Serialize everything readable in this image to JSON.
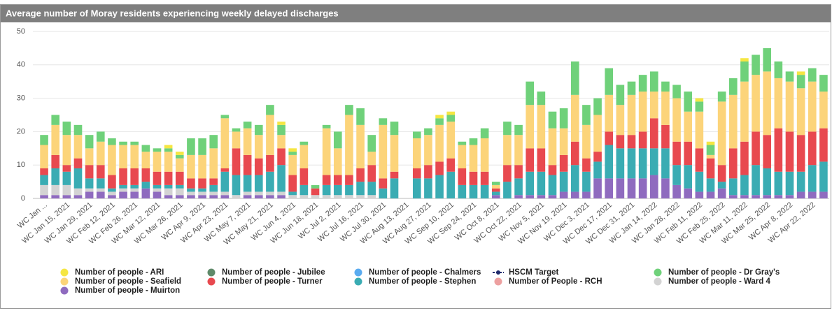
{
  "chart_data": {
    "type": "stacked_bar",
    "title": "Average number of Moray residents experiencing weekly delayed discharges",
    "categories": [
      "WC Jan ...",
      null,
      "WC Jan 15, 2021",
      null,
      "WC Jan 29, 2021",
      null,
      "WC Feb 12, 2021",
      null,
      "WC Feb 26, 2021",
      null,
      "WC Mar 12, 2021",
      null,
      "WC Mar 26, 2021",
      null,
      "WC Apr 9, 2021",
      null,
      "WC Apr 23, 2021",
      null,
      "WC May 7, 2021",
      null,
      "WC May 21, 2021",
      null,
      "WC Jun 4, 2021",
      null,
      "WC Jun 18, 2021",
      null,
      "WC Jul 2, 2021",
      null,
      "WC Jul 16, 2021",
      null,
      "WC Jul 30, 2021",
      null,
      "WC Aug 13, 2021",
      null,
      "WC Aug 27, 2021",
      null,
      "WC Sep 10, 2021",
      null,
      "WC Sep 24, 2021",
      null,
      "WC Oct 8, 2021",
      null,
      "WC Oct 22, 2021",
      null,
      "WC Nov 5, 2021",
      null,
      "WC Nov 19, 2021",
      null,
      "WC Dec 3, 2021",
      null,
      "WC Dec 17, 2021",
      null,
      "WC Dec 31, 2021",
      null,
      "WC Jan 14, 2022",
      null,
      "WC Jan 28, 2022",
      null,
      "WC Feb 11, 2022",
      null,
      "WC Feb 25, 2022",
      null,
      "WC Mar 11, 2022",
      null,
      "WC Mar 25, 2022",
      null,
      "WC Apr 8, 2022",
      null,
      "WC Apr 22, 2022",
      null
    ],
    "series": [
      {
        "name": "Number of people - ARI",
        "color": "#f5e642",
        "values": [
          0,
          0,
          0,
          0,
          0,
          0,
          0,
          0,
          0,
          0,
          0,
          1,
          1,
          0,
          0,
          0,
          0,
          0,
          0,
          0,
          0,
          1,
          1,
          0,
          0,
          0,
          0,
          0,
          0,
          0,
          0,
          0,
          0,
          0,
          0,
          1,
          1,
          0,
          0,
          0,
          0,
          0,
          0,
          0,
          0,
          0,
          0,
          0,
          0,
          0,
          0,
          0,
          0,
          0,
          0,
          0,
          0,
          0,
          1,
          1,
          0,
          0,
          1,
          0,
          0,
          0,
          0,
          1,
          0,
          0
        ]
      },
      {
        "name": "Number of people - Jubilee",
        "color": "#5f8a6a",
        "values": [
          0,
          0,
          0,
          0,
          0,
          0,
          0,
          0,
          0,
          0,
          0,
          0,
          0,
          0,
          0,
          0,
          0,
          0,
          0,
          0,
          0,
          0,
          0,
          0,
          0,
          0,
          0,
          0,
          0,
          0,
          0,
          0,
          0,
          0,
          0,
          0,
          0,
          0,
          0,
          0,
          0,
          0,
          0,
          0,
          0,
          0,
          0,
          0,
          0,
          0,
          0,
          0,
          0,
          0,
          0,
          0,
          0,
          0,
          0,
          0,
          0,
          0,
          0,
          0,
          0,
          0,
          0,
          0,
          0,
          0
        ]
      },
      {
        "name": "Number of people - Chalmers",
        "color": "#5aabf0",
        "values": [
          0,
          0,
          0,
          0,
          0,
          0,
          0,
          0,
          0,
          0,
          0,
          0,
          0,
          0,
          0,
          0,
          0,
          0,
          0,
          0,
          0,
          0,
          0,
          0,
          0,
          0,
          0,
          0,
          0,
          0,
          0,
          0,
          0,
          0,
          0,
          0,
          0,
          0,
          0,
          0,
          0,
          0,
          0,
          0,
          0,
          0,
          0,
          0,
          0,
          0,
          0,
          0,
          0,
          0,
          0,
          0,
          0,
          0,
          0,
          0,
          0,
          0,
          0,
          0,
          0,
          0,
          0,
          0,
          0,
          0
        ]
      },
      {
        "name": "HSCM Target",
        "color": "#1f2a6b",
        "values": [
          null,
          null,
          null,
          null,
          null,
          null,
          null,
          null,
          null,
          null,
          null,
          null,
          null,
          null,
          null,
          null,
          null,
          null,
          null,
          null,
          null,
          null,
          null,
          null,
          null,
          null,
          null,
          null,
          null,
          null,
          null,
          null,
          null,
          null,
          null,
          null,
          null,
          null,
          null,
          null,
          null,
          null,
          null,
          null,
          null,
          null,
          null,
          null,
          null,
          null,
          null,
          null,
          null,
          null,
          null,
          null,
          null,
          null,
          null,
          null,
          null,
          null,
          null,
          null,
          null,
          null,
          null,
          null,
          null,
          null
        ]
      },
      {
        "name": "Number of people - Dr Gray's",
        "color": "#6fd17a",
        "values": [
          3,
          3,
          4,
          3,
          4,
          3,
          2,
          1,
          1,
          2,
          1,
          1,
          1,
          5,
          5,
          4,
          1,
          1,
          2,
          3,
          3,
          3,
          1,
          1,
          1,
          1,
          5,
          3,
          5,
          5,
          2,
          4,
          0,
          2,
          2,
          2,
          2,
          1,
          2,
          3,
          1,
          4,
          3,
          7,
          4,
          5,
          6,
          10,
          6,
          5,
          8,
          6,
          4,
          5,
          6,
          3,
          4,
          6,
          3,
          3,
          3,
          5,
          6,
          6,
          7,
          5,
          3,
          4,
          4,
          5
        ]
      },
      {
        "name": "Number of people - Seafield",
        "color": "#fcd47a",
        "values": [
          7,
          9,
          9,
          7,
          5,
          7,
          9,
          7,
          7,
          5,
          6,
          6,
          4,
          7,
          7,
          9,
          15,
          5,
          8,
          7,
          12,
          4,
          6,
          7,
          0,
          14,
          8,
          18,
          13,
          4,
          16,
          11,
          0,
          9,
          9,
          11,
          11,
          7,
          8,
          10,
          1,
          9,
          9,
          13,
          13,
          11,
          8,
          14,
          10,
          11,
          11,
          9,
          12,
          12,
          8,
          10,
          13,
          9,
          11,
          1,
          19,
          16,
          18,
          17,
          19,
          15,
          15,
          14,
          15,
          11
        ]
      },
      {
        "name": "Number of people - Turner",
        "color": "#e8494f",
        "values": [
          2,
          4,
          2,
          3,
          4,
          4,
          4,
          5,
          5,
          4,
          4,
          4,
          4,
          3,
          3,
          2,
          1,
          8,
          6,
          5,
          5,
          5,
          5,
          5,
          2,
          3,
          3,
          3,
          4,
          5,
          3,
          2,
          0,
          3,
          4,
          4,
          4,
          5,
          4,
          4,
          1,
          5,
          4,
          7,
          7,
          3,
          5,
          7,
          4,
          3,
          4,
          4,
          4,
          5,
          9,
          7,
          7,
          7,
          7,
          6,
          5,
          9,
          10,
          10,
          10,
          13,
          12,
          11,
          10,
          10
        ]
      },
      {
        "name": "Number of people - Stephen",
        "color": "#3aacb3",
        "values": [
          3,
          5,
          4,
          6,
          3,
          3,
          1,
          1,
          1,
          2,
          1,
          1,
          1,
          1,
          1,
          2,
          6,
          6,
          5,
          5,
          6,
          8,
          1,
          3,
          0,
          3,
          3,
          3,
          4,
          4,
          3,
          6,
          0,
          6,
          6,
          7,
          8,
          4,
          4,
          4,
          1,
          5,
          5,
          7,
          7,
          6,
          6,
          8,
          6,
          5,
          10,
          9,
          9,
          9,
          8,
          9,
          6,
          7,
          6,
          4,
          2,
          5,
          6,
          9,
          8,
          7,
          7,
          6,
          8,
          9
        ]
      },
      {
        "name": "Number of People - RCH",
        "color": "#eda0a0",
        "values": [
          0,
          0,
          0,
          0,
          0,
          0,
          0,
          0,
          0,
          0,
          0,
          0,
          0,
          0,
          0,
          0,
          0,
          0,
          0,
          0,
          0,
          0,
          0,
          0,
          0,
          0,
          0,
          0,
          0,
          0,
          0,
          0,
          0,
          0,
          0,
          0,
          0,
          0,
          0,
          0,
          0,
          0,
          0,
          0,
          0,
          0,
          0,
          0,
          0,
          0,
          0,
          0,
          0,
          0,
          0,
          0,
          0,
          0,
          0,
          0,
          0,
          0,
          0,
          0,
          0,
          0,
          0,
          0,
          0,
          0
        ]
      },
      {
        "name": "Number of people - Ward 4",
        "color": "#d3d3d3",
        "values": [
          3,
          3,
          3,
          2,
          1,
          1,
          1,
          1,
          1,
          0,
          1,
          2,
          2,
          1,
          1,
          1,
          1,
          1,
          1,
          1,
          1,
          1,
          1,
          1,
          1,
          1,
          1,
          1,
          1,
          1,
          0,
          0,
          0,
          0,
          0,
          0,
          0,
          0,
          0,
          0,
          0,
          0,
          0,
          0,
          0,
          0,
          0,
          0,
          0,
          0,
          0,
          0,
          0,
          0,
          0,
          0,
          0,
          0,
          0,
          0,
          0,
          0,
          0,
          0,
          0,
          0,
          0,
          0,
          0,
          0
        ]
      },
      {
        "name": "Number of people - Muirton",
        "color": "#8f6bbf",
        "values": [
          1,
          1,
          1,
          1,
          2,
          2,
          1,
          2,
          2,
          3,
          2,
          1,
          1,
          1,
          1,
          1,
          1,
          0,
          1,
          1,
          1,
          1,
          0,
          0,
          0,
          0,
          0,
          0,
          0,
          0,
          0,
          0,
          0,
          0,
          0,
          0,
          0,
          0,
          0,
          0,
          1,
          0,
          1,
          1,
          1,
          1,
          2,
          2,
          2,
          6,
          6,
          6,
          6,
          6,
          7,
          6,
          4,
          3,
          2,
          2,
          3,
          1,
          1,
          1,
          1,
          1,
          1,
          2,
          2,
          2
        ]
      }
    ],
    "ylim": [
      0,
      50
    ],
    "yticks": [
      0,
      10,
      20,
      30,
      40,
      50
    ],
    "grid": true,
    "legend": "bottom"
  }
}
